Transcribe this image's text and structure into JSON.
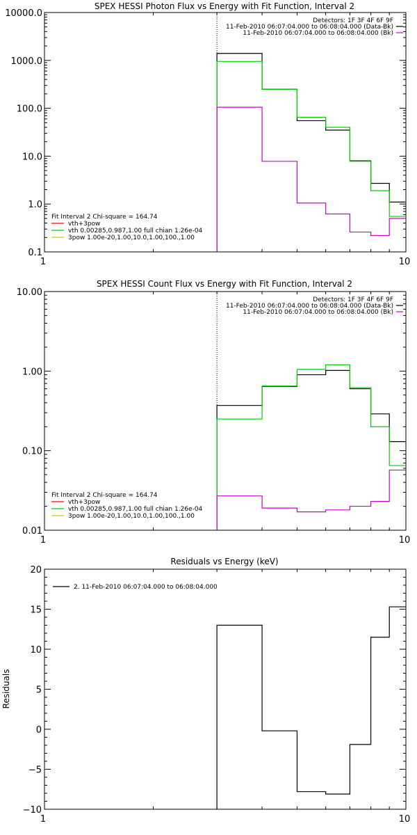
{
  "chart_data": [
    {
      "type": "line",
      "title": "SPEX HESSI Photon Flux vs Energy with Fit Function, Interval 2",
      "xscale": "log",
      "yscale": "log",
      "xlim": [
        1,
        10
      ],
      "ylim": [
        0.1,
        10000
      ],
      "xticks": [
        "1",
        "10"
      ],
      "yticks": [
        "0.1",
        "1.0",
        "10.0",
        "100.0",
        "1000.0",
        "10000.0"
      ],
      "x_edges": [
        3,
        4,
        5,
        6,
        7,
        8,
        9,
        10
      ],
      "vline_x": 3,
      "legend_tr": [
        "Detectors: 1F 3F 4F 6F 9F",
        "11-Feb-2010 06:07:04.000 to 06:08:04.000 (Data-Bk)",
        "11-Feb-2010 06:07:04.000 to 06:08:04.000 (Bk)"
      ],
      "legend_tr_colors": [
        "",
        "#000000",
        "#cc00cc"
      ],
      "legend_bl": [
        "Fit Interval 2   Chi-square = 164.74",
        "vth+3pow",
        "vth 0.00285,0.987,1.00  full chian 1.26e-04",
        "3pow 1.00e-20,1.00,10.0,1.00,100.,1.00"
      ],
      "legend_bl_colors": [
        "",
        "#ff0000",
        "#00cc00",
        "#cccc00"
      ],
      "series": [
        {
          "color": "#000000",
          "values": [
            1400,
            250,
            55,
            35,
            8,
            2.7,
            1.1
          ]
        },
        {
          "color": "#00cc00",
          "values": [
            950,
            250,
            65,
            40,
            7.8,
            1.9,
            0.55
          ]
        },
        {
          "color": "#cc00cc",
          "values": [
            105,
            7.8,
            1.05,
            0.62,
            0.26,
            0.22,
            0.5
          ]
        }
      ]
    },
    {
      "type": "line",
      "title": "SPEX HESSI Count Flux vs Energy with Fit Function, Interval 2",
      "xscale": "log",
      "yscale": "log",
      "xlim": [
        1,
        10
      ],
      "ylim": [
        0.01,
        10
      ],
      "xticks": [
        "1",
        "10"
      ],
      "yticks": [
        "0.01",
        "0.10",
        "1.00",
        "10.00"
      ],
      "x_edges": [
        3,
        4,
        5,
        6,
        7,
        8,
        9,
        10
      ],
      "vline_x": 3,
      "legend_tr": [
        "Detectors: 1F 3F 4F 6F 9F",
        "11-Feb-2010 06:07:04.000 to 06:08:04.000 (Data-Bk)",
        "11-Feb-2010 06:07:04.000 to 06:08:04.000 (Bk)"
      ],
      "legend_tr_colors": [
        "",
        "#000000",
        "#cc00cc"
      ],
      "legend_bl": [
        "Fit Interval 2   Chi-square = 164.74",
        "vth+3pow",
        "vth 0.00285,0.987,1.00  full chian 1.26e-04",
        "3pow 1.00e-20,1.00,10.0,1.00,100.,1.00"
      ],
      "legend_bl_colors": [
        "",
        "#ff0000",
        "#00cc00",
        "#cccc00"
      ],
      "series": [
        {
          "color": "#000000",
          "values": [
            0.37,
            0.64,
            0.9,
            1.02,
            0.6,
            0.29,
            0.13
          ]
        },
        {
          "color": "#00cc00",
          "values": [
            0.25,
            0.65,
            1.05,
            1.2,
            0.62,
            0.2,
            0.065
          ]
        },
        {
          "color": "#cc00cc",
          "values": [
            0.027,
            0.019,
            0.017,
            0.018,
            0.02,
            0.023,
            0.057
          ]
        }
      ]
    },
    {
      "type": "line",
      "title": "Residuals vs Energy (keV)",
      "xscale": "log",
      "yscale": "linear",
      "xlim": [
        1,
        10
      ],
      "ylim": [
        -10,
        20
      ],
      "xticks": [
        "1",
        "10"
      ],
      "yticks": [
        "−10",
        "−5",
        "0",
        "5",
        "10",
        "15",
        "20"
      ],
      "ylabel": "Residuals",
      "x_edges": [
        3,
        4,
        5,
        6,
        7,
        8,
        9,
        10
      ],
      "legend_tl": [
        "2. 11-Feb-2010 06:07:04.000 to 06:08:04.000"
      ],
      "series": [
        {
          "color": "#000000",
          "values": [
            13,
            -0.2,
            -7.8,
            -8.1,
            -1.9,
            11.5,
            15.3
          ]
        }
      ]
    }
  ]
}
